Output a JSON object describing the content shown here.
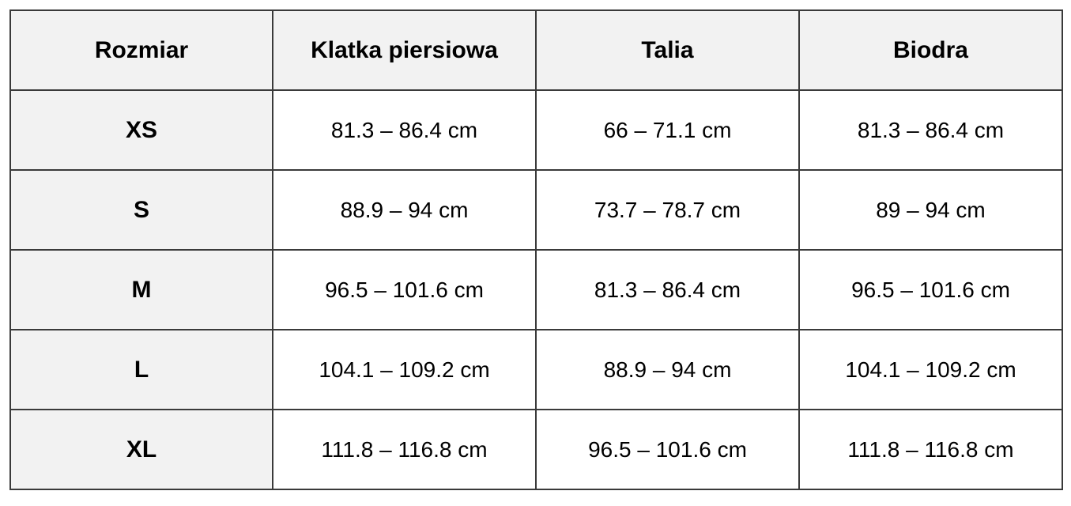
{
  "table": {
    "headers": [
      "Rozmiar",
      "Klatka piersiowa",
      "Talia",
      "Biodra"
    ],
    "rows": [
      [
        "XS",
        "81.3 – 86.4 cm",
        "66 – 71.1 cm",
        "81.3 – 86.4 cm"
      ],
      [
        "S",
        "88.9 – 94 cm",
        "73.7 – 78.7 cm",
        "89 – 94 cm"
      ],
      [
        "M",
        "96.5 – 101.6 cm",
        "81.3 – 86.4 cm",
        "96.5 – 101.6 cm"
      ],
      [
        "L",
        "104.1 – 109.2 cm",
        "88.9 – 94 cm",
        "104.1 – 109.2 cm"
      ],
      [
        "XL",
        "111.8 – 116.8 cm",
        "96.5 – 101.6 cm",
        "111.8 – 116.8 cm"
      ]
    ]
  },
  "colors": {
    "header_bg": "#f2f2f2",
    "border": "#3a3a3a",
    "text": "#000000"
  }
}
